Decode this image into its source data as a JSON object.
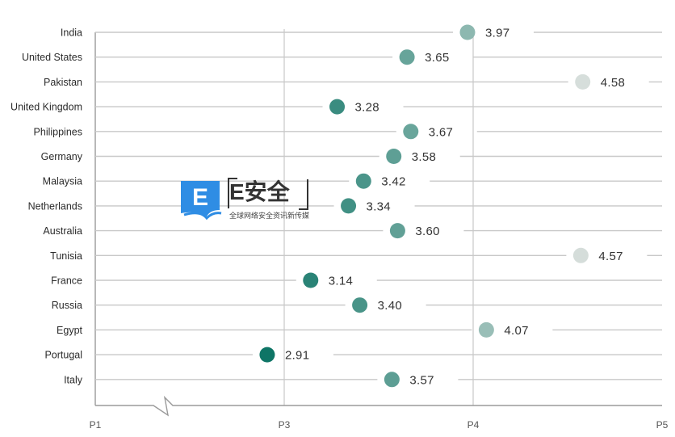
{
  "chart_data": {
    "type": "scatter",
    "categories": [
      "India",
      "United States",
      "Pakistan",
      "United Kingdom",
      "Philippines",
      "Germany",
      "Malaysia",
      "Netherlands",
      "Australia",
      "Tunisia",
      "France",
      "Russia",
      "Egypt",
      "Portugal",
      "Italy"
    ],
    "values": [
      3.97,
      3.65,
      4.58,
      3.28,
      3.67,
      3.58,
      3.42,
      3.34,
      3.6,
      4.57,
      3.14,
      3.4,
      4.07,
      2.91,
      3.57
    ],
    "value_labels": [
      "3.97",
      "3.65",
      "4.58",
      "3.28",
      "3.67",
      "3.58",
      "3.42",
      "3.34",
      "3.60",
      "4.57",
      "3.14",
      "3.40",
      "4.07",
      "2.91",
      "3.57"
    ],
    "x_ticks": [
      "P1",
      "P3",
      "P4",
      "P5"
    ],
    "tick_values": [
      2.0,
      3.0,
      4.0,
      5.0
    ],
    "xlim": [
      2.0,
      5.0
    ],
    "axis_break": true,
    "grid": true,
    "color_scale": {
      "low": "#0e7566",
      "high": "#d6dedb"
    },
    "grid_color": "#c8c8c8",
    "axis_color": "#9a9a9a"
  },
  "watermark": {
    "badge_letter": "E",
    "title": "E安全",
    "subtitle": "全球网络安全资讯新传媒",
    "badge_color": "#2f8de4"
  }
}
